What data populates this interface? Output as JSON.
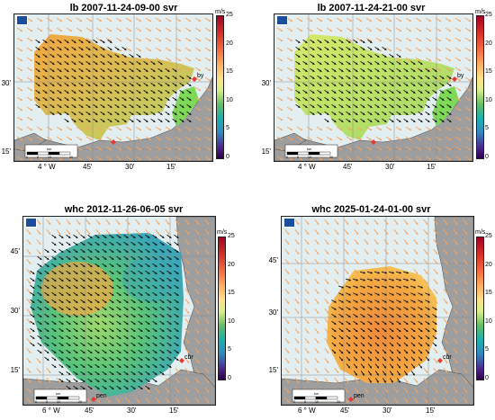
{
  "panels": [
    {
      "title": "lb 2007-11-24-09-00 svr",
      "lat_labels": [
        "30'",
        "15'"
      ],
      "lon_labels": [
        "4 ° W",
        "45'",
        "30'",
        "15'"
      ],
      "colorbar": {
        "unit": "m/s",
        "ticks": [
          "25",
          "20",
          "15",
          "10",
          "5",
          "0"
        ]
      },
      "stations": [
        "by"
      ],
      "scalebar_label": "km",
      "scalebar_ticks": [
        "0",
        "5",
        "10",
        "20"
      ]
    },
    {
      "title": "lb 2007-11-24-21-00 svr",
      "lat_labels": [
        "30'",
        "15'"
      ],
      "lon_labels": [
        "4 ° W",
        "45'",
        "30'",
        "15'"
      ],
      "colorbar": {
        "unit": "m/s",
        "ticks": [
          "25",
          "20",
          "15",
          "10",
          "5",
          "0"
        ]
      },
      "stations": [
        "by"
      ],
      "scalebar_label": "km",
      "scalebar_ticks": [
        "0",
        "5",
        "10",
        "20"
      ]
    },
    {
      "title": "whc 2012-11-26-06-05 svr",
      "lat_labels": [
        "45'",
        "30'",
        "15'"
      ],
      "lon_labels": [
        "6 ° W",
        "45'",
        "30'",
        "15'"
      ],
      "colorbar": {
        "unit": "m/s",
        "ticks": [
          "25",
          "20",
          "15",
          "10",
          "5",
          "0"
        ]
      },
      "stations": [
        "pen",
        "cbr"
      ],
      "scalebar_label": "km",
      "scalebar_ticks": [
        "0",
        "5",
        "10",
        "20"
      ]
    },
    {
      "title": "whc 2025-01-24-01-00 svr",
      "lat_labels": [
        "45'",
        "30'",
        "15'"
      ],
      "lon_labels": [
        "6 ° W",
        "45'",
        "30'",
        "15'"
      ],
      "colorbar": {
        "unit": "m/s",
        "ticks": [
          "25",
          "20",
          "15",
          "10",
          "5",
          "0"
        ]
      },
      "stations": [
        "pen",
        "cbr"
      ],
      "scalebar_label": "km",
      "scalebar_ticks": [
        "0",
        "5",
        "10",
        "20"
      ]
    }
  ],
  "logo_text": "NERC/NOC",
  "colors": {
    "land": "#9e9e9e",
    "sea": "#e3eef1",
    "station": "#e53935",
    "arrow_model": "#f4a460",
    "arrow_obs": "#111111"
  }
}
